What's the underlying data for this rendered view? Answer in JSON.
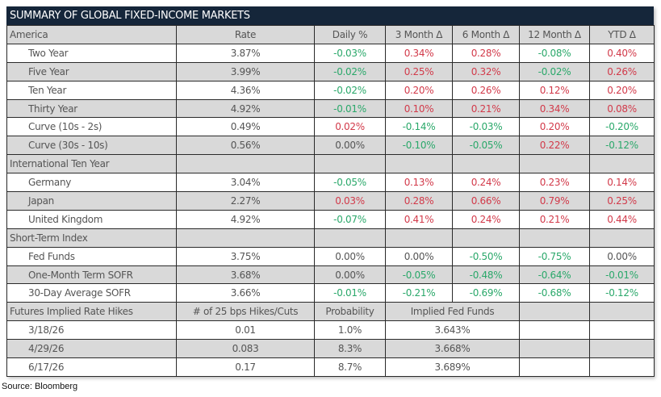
{
  "title": "SUMMARY OF GLOBAL FIXED-INCOME MARKETS",
  "colors": {
    "positive": "#d23a4a",
    "negative": "#2aa86a",
    "header_bg": "#15263a"
  },
  "sections": [
    {
      "header": [
        "America",
        "Rate",
        "Daily %",
        "3 Month Δ",
        "6 Month Δ",
        "12 Month Δ",
        "YTD Δ"
      ],
      "rows": [
        [
          "Two Year",
          "3.87%",
          "-0.03%",
          "0.34%",
          "0.28%",
          "-0.08%",
          "0.40%"
        ],
        [
          "Five Year",
          "3.99%",
          "-0.02%",
          "0.25%",
          "0.32%",
          "-0.02%",
          "0.26%"
        ],
        [
          "Ten Year",
          "4.36%",
          "-0.02%",
          "0.20%",
          "0.26%",
          "0.12%",
          "0.20%"
        ],
        [
          "Thirty Year",
          "4.92%",
          "-0.01%",
          "0.10%",
          "0.21%",
          "0.34%",
          "0.08%"
        ],
        [
          "Curve (10s - 2s)",
          "0.49%",
          "0.02%",
          "-0.14%",
          "-0.03%",
          "0.20%",
          "-0.20%"
        ],
        [
          "Curve (30s - 10s)",
          "0.56%",
          "0.00%",
          "-0.10%",
          "-0.05%",
          "0.22%",
          "-0.12%"
        ]
      ]
    },
    {
      "header": [
        "International Ten Year"
      ],
      "rows": [
        [
          "Germany",
          "3.04%",
          "-0.05%",
          "0.13%",
          "0.24%",
          "0.23%",
          "0.14%"
        ],
        [
          "Japan",
          "2.27%",
          "0.03%",
          "0.28%",
          "0.66%",
          "0.79%",
          "0.25%"
        ],
        [
          "United Kingdom",
          "4.92%",
          "-0.07%",
          "0.41%",
          "0.24%",
          "0.21%",
          "0.44%"
        ]
      ]
    },
    {
      "header": [
        "Short-Term Index"
      ],
      "rows": [
        [
          "Fed Funds",
          "3.75%",
          "0.00%",
          "0.00%",
          "-0.50%",
          "-0.75%",
          "0.00%"
        ],
        [
          "One-Month Term SOFR",
          "3.68%",
          "0.00%",
          "-0.05%",
          "-0.48%",
          "-0.64%",
          "-0.01%"
        ],
        [
          "30-Day Average SOFR",
          "3.66%",
          "-0.01%",
          "-0.21%",
          "-0.69%",
          "-0.68%",
          "-0.12%"
        ]
      ]
    }
  ],
  "futures": {
    "header": [
      "Futures Implied Rate Hikes",
      "# of 25 bps Hikes/Cuts",
      "Probability",
      "Implied Fed Funds"
    ],
    "rows": [
      [
        "3/18/26",
        "0.01",
        "1.0%",
        "3.643%"
      ],
      [
        "4/29/26",
        "0.083",
        "8.3%",
        "3.668%"
      ],
      [
        "6/17/26",
        "0.17",
        "8.7%",
        "3.689%"
      ]
    ]
  },
  "source": "Source: Bloomberg"
}
